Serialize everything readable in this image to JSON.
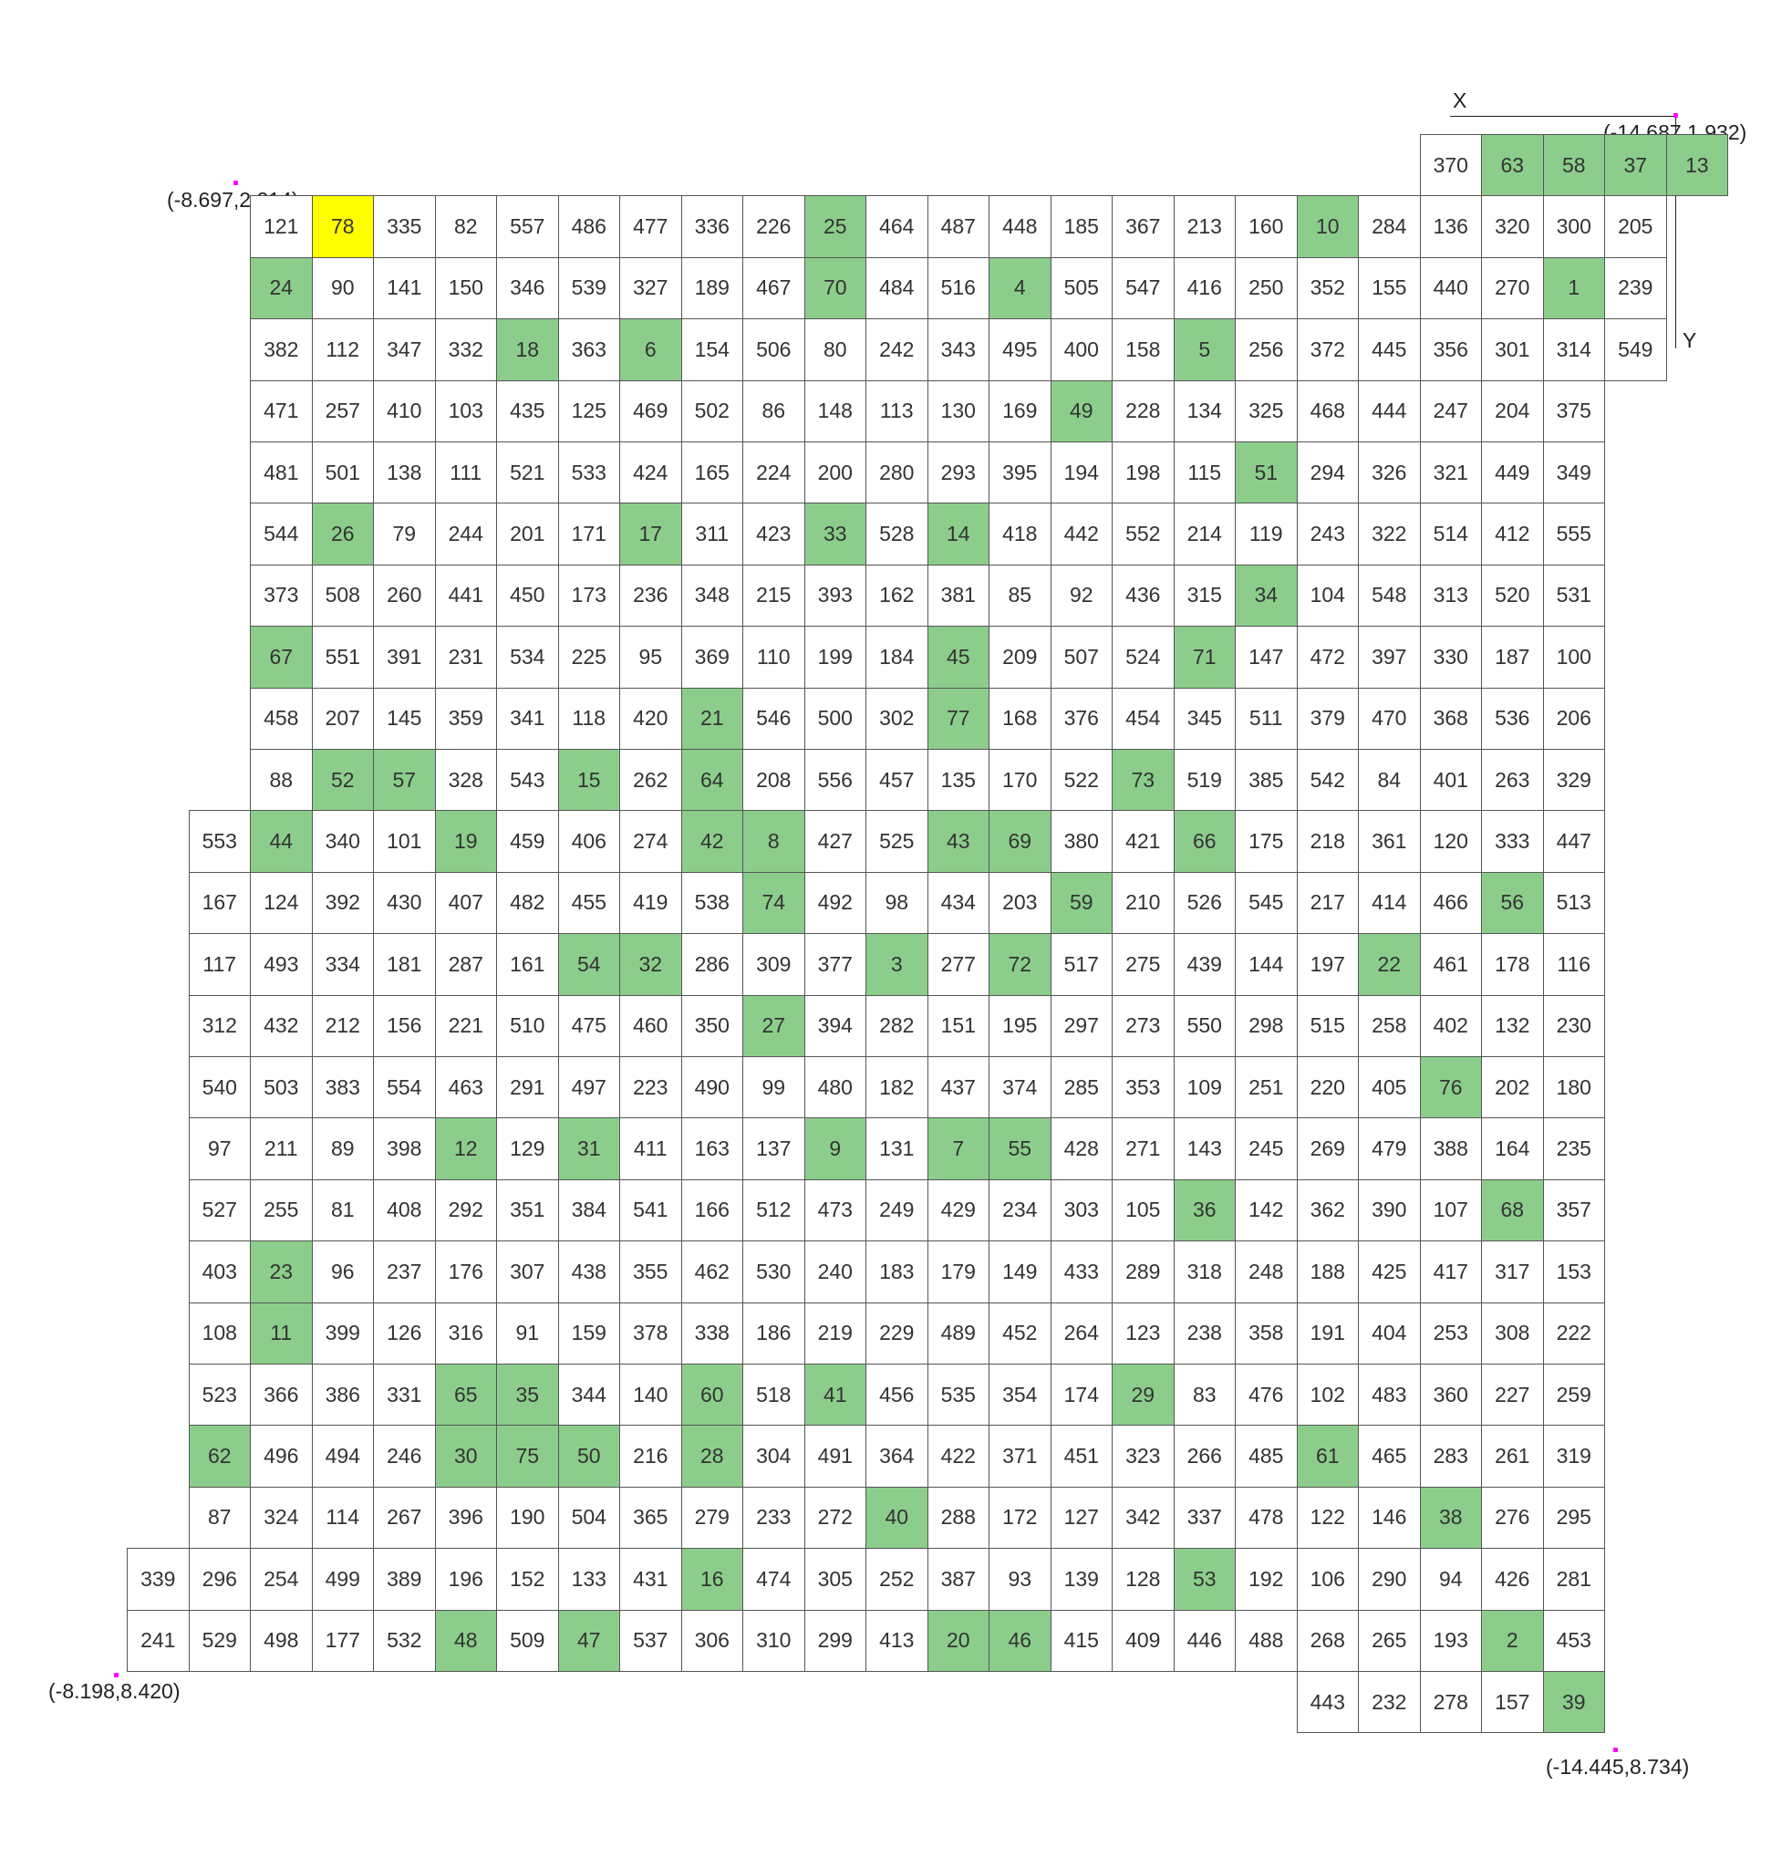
{
  "axes": {
    "x_label": "X",
    "y_label": "Y"
  },
  "corners": {
    "top_right": "(-14.687,1.932)",
    "top_left": "(-8.697,2.214)",
    "bottom_left": "(-8.198,8.420)",
    "bottom_right": "(-14.445,8.734)"
  },
  "colors": {
    "highlight": "#8ccd8c",
    "current": "#ffff00",
    "marker": "#ff00ff"
  },
  "current_cell": "78",
  "grid": [
    {
      "col0": 21,
      "cells": [
        "370",
        "*63",
        "*58",
        "*37",
        "*13"
      ]
    },
    {
      "col0": 2,
      "cells": [
        "121",
        "!78",
        "335",
        "82",
        "557",
        "486",
        "477",
        "336",
        "226",
        "*25",
        "464",
        "487",
        "448",
        "185",
        "367",
        "213",
        "160",
        "*10",
        "284",
        "136",
        "320",
        "300",
        "205"
      ]
    },
    {
      "col0": 2,
      "cells": [
        "*24",
        "90",
        "141",
        "150",
        "346",
        "539",
        "327",
        "189",
        "467",
        "*70",
        "484",
        "516",
        "*4",
        "505",
        "547",
        "416",
        "250",
        "352",
        "155",
        "440",
        "270",
        "*1",
        "239"
      ]
    },
    {
      "col0": 2,
      "cells": [
        "382",
        "112",
        "347",
        "332",
        "*18",
        "363",
        "*6",
        "154",
        "506",
        "80",
        "242",
        "343",
        "495",
        "400",
        "158",
        "*5",
        "256",
        "372",
        "445",
        "356",
        "301",
        "314",
        "549"
      ]
    },
    {
      "col0": 2,
      "cells": [
        "471",
        "257",
        "410",
        "103",
        "435",
        "125",
        "469",
        "502",
        "86",
        "148",
        "113",
        "130",
        "169",
        "*49",
        "228",
        "134",
        "325",
        "468",
        "444",
        "247",
        "204",
        "375"
      ]
    },
    {
      "col0": 2,
      "cells": [
        "481",
        "501",
        "138",
        "111",
        "521",
        "533",
        "424",
        "165",
        "224",
        "200",
        "280",
        "293",
        "395",
        "194",
        "198",
        "115",
        "*51",
        "294",
        "326",
        "321",
        "449",
        "349"
      ]
    },
    {
      "col0": 2,
      "cells": [
        "544",
        "*26",
        "79",
        "244",
        "201",
        "171",
        "*17",
        "311",
        "423",
        "*33",
        "528",
        "*14",
        "418",
        "442",
        "552",
        "214",
        "119",
        "243",
        "322",
        "514",
        "412",
        "555"
      ]
    },
    {
      "col0": 2,
      "cells": [
        "373",
        "508",
        "260",
        "441",
        "450",
        "173",
        "236",
        "348",
        "215",
        "393",
        "162",
        "381",
        "85",
        "92",
        "436",
        "315",
        "*34",
        "104",
        "548",
        "313",
        "520",
        "531"
      ]
    },
    {
      "col0": 2,
      "cells": [
        "*67",
        "551",
        "391",
        "231",
        "534",
        "225",
        "95",
        "369",
        "110",
        "199",
        "184",
        "*45",
        "209",
        "507",
        "524",
        "*71",
        "147",
        "472",
        "397",
        "330",
        "187",
        "100"
      ]
    },
    {
      "col0": 2,
      "cells": [
        "458",
        "207",
        "145",
        "359",
        "341",
        "118",
        "420",
        "*21",
        "546",
        "500",
        "302",
        "*77",
        "168",
        "376",
        "454",
        "345",
        "511",
        "379",
        "470",
        "368",
        "536",
        "206"
      ]
    },
    {
      "col0": 2,
      "cells": [
        "88",
        "*52",
        "*57",
        "328",
        "543",
        "*15",
        "262",
        "*64",
        "208",
        "556",
        "457",
        "135",
        "170",
        "522",
        "*73",
        "519",
        "385",
        "542",
        "84",
        "401",
        "263",
        "329"
      ]
    },
    {
      "col0": 1,
      "cells": [
        "553",
        "*44",
        "340",
        "101",
        "*19",
        "459",
        "406",
        "274",
        "*42",
        "*8",
        "427",
        "525",
        "*43",
        "*69",
        "380",
        "421",
        "*66",
        "175",
        "218",
        "361",
        "120",
        "333",
        "447"
      ]
    },
    {
      "col0": 1,
      "cells": [
        "167",
        "124",
        "392",
        "430",
        "407",
        "482",
        "455",
        "419",
        "538",
        "*74",
        "492",
        "98",
        "434",
        "203",
        "*59",
        "210",
        "526",
        "545",
        "217",
        "414",
        "466",
        "*56",
        "513"
      ]
    },
    {
      "col0": 1,
      "cells": [
        "117",
        "493",
        "334",
        "181",
        "287",
        "161",
        "*54",
        "*32",
        "286",
        "309",
        "377",
        "*3",
        "277",
        "*72",
        "517",
        "275",
        "439",
        "144",
        "197",
        "*22",
        "461",
        "178",
        "116"
      ]
    },
    {
      "col0": 1,
      "cells": [
        "312",
        "432",
        "212",
        "156",
        "221",
        "510",
        "475",
        "460",
        "350",
        "*27",
        "394",
        "282",
        "151",
        "195",
        "297",
        "273",
        "550",
        "298",
        "515",
        "258",
        "402",
        "132",
        "230"
      ]
    },
    {
      "col0": 1,
      "cells": [
        "540",
        "503",
        "383",
        "554",
        "463",
        "291",
        "497",
        "223",
        "490",
        "99",
        "480",
        "182",
        "437",
        "374",
        "285",
        "353",
        "109",
        "251",
        "220",
        "405",
        "*76",
        "202",
        "180"
      ]
    },
    {
      "col0": 1,
      "cells": [
        "97",
        "211",
        "89",
        "398",
        "*12",
        "129",
        "*31",
        "411",
        "163",
        "137",
        "*9",
        "131",
        "*7",
        "*55",
        "428",
        "271",
        "143",
        "245",
        "269",
        "479",
        "388",
        "164",
        "235"
      ]
    },
    {
      "col0": 1,
      "cells": [
        "527",
        "255",
        "81",
        "408",
        "292",
        "351",
        "384",
        "541",
        "166",
        "512",
        "473",
        "249",
        "429",
        "234",
        "303",
        "105",
        "*36",
        "142",
        "362",
        "390",
        "107",
        "*68",
        "357"
      ]
    },
    {
      "col0": 1,
      "cells": [
        "403",
        "*23",
        "96",
        "237",
        "176",
        "307",
        "438",
        "355",
        "462",
        "530",
        "240",
        "183",
        "179",
        "149",
        "433",
        "289",
        "318",
        "248",
        "188",
        "425",
        "417",
        "317",
        "153"
      ]
    },
    {
      "col0": 1,
      "cells": [
        "108",
        "*11",
        "399",
        "126",
        "316",
        "91",
        "159",
        "378",
        "338",
        "186",
        "219",
        "229",
        "489",
        "452",
        "264",
        "123",
        "238",
        "358",
        "191",
        "404",
        "253",
        "308",
        "222"
      ]
    },
    {
      "col0": 1,
      "cells": [
        "523",
        "366",
        "386",
        "331",
        "*65",
        "*35",
        "344",
        "140",
        "*60",
        "518",
        "*41",
        "456",
        "535",
        "354",
        "174",
        "*29",
        "83",
        "476",
        "102",
        "483",
        "360",
        "227",
        "259"
      ]
    },
    {
      "col0": 1,
      "cells": [
        "*62",
        "496",
        "494",
        "246",
        "*30",
        "*75",
        "*50",
        "216",
        "*28",
        "304",
        "491",
        "364",
        "422",
        "371",
        "451",
        "323",
        "266",
        "485",
        "*61",
        "465",
        "283",
        "261",
        "319"
      ]
    },
    {
      "col0": 1,
      "cells": [
        "87",
        "324",
        "114",
        "267",
        "396",
        "190",
        "504",
        "365",
        "279",
        "233",
        "272",
        "*40",
        "288",
        "172",
        "127",
        "342",
        "337",
        "478",
        "122",
        "146",
        "*38",
        "276",
        "295"
      ]
    },
    {
      "col0": 0,
      "cells": [
        "339",
        "296",
        "254",
        "499",
        "389",
        "196",
        "152",
        "133",
        "431",
        "*16",
        "474",
        "305",
        "252",
        "387",
        "93",
        "139",
        "128",
        "*53",
        "192",
        "106",
        "290",
        "94",
        "426",
        "281"
      ]
    },
    {
      "col0": 0,
      "cells": [
        "241",
        "529",
        "498",
        "177",
        "532",
        "*48",
        "509",
        "*47",
        "537",
        "306",
        "310",
        "299",
        "413",
        "*20",
        "*46",
        "415",
        "409",
        "446",
        "488",
        "268",
        "265",
        "193",
        "*2",
        "453"
      ]
    },
    {
      "col0": 19,
      "cells": [
        "443",
        "232",
        "278",
        "157",
        "*39"
      ]
    }
  ]
}
